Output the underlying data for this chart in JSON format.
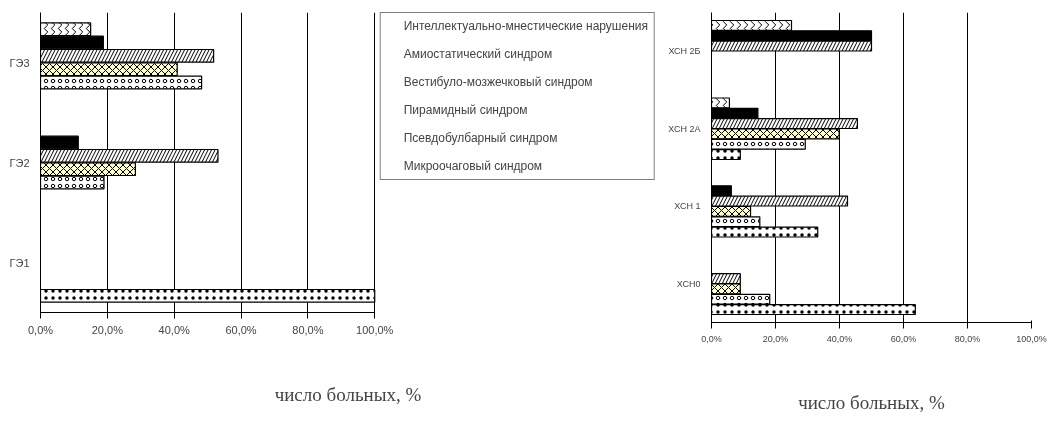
{
  "chart_data": [
    {
      "type": "bar",
      "orientation": "horizontal",
      "categories": [
        "ГЭ3",
        "ГЭ2",
        "ГЭ1"
      ],
      "xlabel": "число больных, %",
      "xlim": [
        0,
        100
      ],
      "xticks": [
        {
          "value": 0,
          "label": "0,0%"
        },
        {
          "value": 20,
          "label": "20,0%"
        },
        {
          "value": 40,
          "label": "40,0%"
        },
        {
          "value": 60,
          "label": "60,0%"
        },
        {
          "value": 80,
          "label": "80,0%"
        },
        {
          "value": 100,
          "label": "100,0%"
        }
      ],
      "grid": "x",
      "legend": "right",
      "series": [
        {
          "name": "Интеллектуально-мнестические нарушения",
          "color": "#ffffff",
          "values": [
            15,
            0,
            0
          ]
        },
        {
          "name": "Амиостатический синдром",
          "color": "#000000",
          "values": [
            18.8,
            11.3,
            0
          ]
        },
        {
          "name": "Вестибуло-мозжечковый синдром",
          "color": "#ffffff",
          "values": [
            51.8,
            53.1,
            0
          ]
        },
        {
          "name": "Пирамидный синдром",
          "color": "#ffffcc",
          "values": [
            40.9,
            28.4,
            0
          ]
        },
        {
          "name": "Псевдобулбарный синдром",
          "color": "#ffffff",
          "values": [
            48.2,
            19.0,
            0
          ]
        },
        {
          "name": "Микроочаговый синдром",
          "color": "#ffffff",
          "values": [
            0,
            0,
            100
          ]
        }
      ]
    },
    {
      "type": "bar",
      "orientation": "horizontal",
      "categories": [
        "ХСН 2Б",
        "ХСН 2А",
        "ХСН 1",
        "ХСН0"
      ],
      "xlabel": "число больных, %",
      "xlim": [
        0,
        100
      ],
      "xticks": [
        {
          "value": 0,
          "label": "0,0%"
        },
        {
          "value": 20,
          "label": "20,0%"
        },
        {
          "value": 40,
          "label": "40,0%"
        },
        {
          "value": 60,
          "label": "60,0%"
        },
        {
          "value": 80,
          "label": "80,0%"
        },
        {
          "value": 100,
          "label": "100,0%"
        }
      ],
      "grid": "x",
      "series": [
        {
          "color": "#ffffff",
          "values": [
            25,
            5.6,
            0,
            0
          ]
        },
        {
          "color": "#000000",
          "values": [
            50,
            14.5,
            6.2,
            0
          ]
        },
        {
          "color": "#ffffff",
          "values": [
            50,
            45.6,
            42.5,
            9.0
          ]
        },
        {
          "color": "#ffffcc",
          "values": [
            0,
            39.9,
            12.2,
            9.0
          ]
        },
        {
          "color": "#ffffff",
          "values": [
            0,
            29.3,
            15.1,
            18.2
          ]
        },
        {
          "color": "#ffffff",
          "values": [
            0,
            9.0,
            33.2,
            63.7
          ]
        }
      ]
    }
  ]
}
